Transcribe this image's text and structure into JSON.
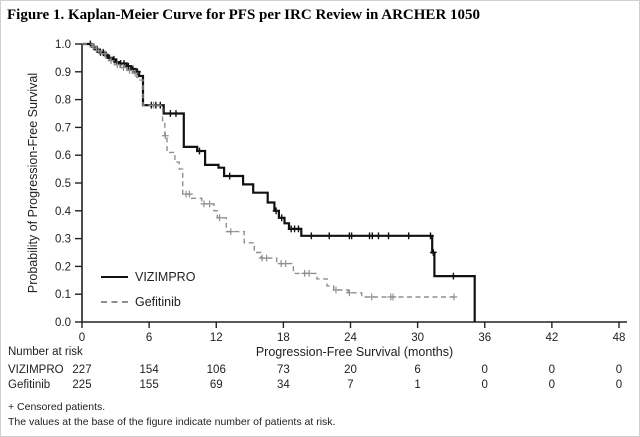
{
  "figure": {
    "title": "Figure 1. Kaplan-Meier Curve for PFS per IRC Review in ARCHER 1050"
  },
  "chart_data": {
    "type": "line",
    "subtype": "kaplan-meier-step-curve",
    "title": "Figure 1. Kaplan-Meier Curve for PFS per IRC Review in ARCHER 1050",
    "xlabel": "Progression-Free Survival (months)",
    "ylabel": "Probability of Progression-Free Survival",
    "xlim": [
      0,
      48
    ],
    "ylim": [
      0.0,
      1.0
    ],
    "x_ticks": [
      0,
      6,
      12,
      18,
      24,
      30,
      36,
      42,
      48
    ],
    "y_ticks": [
      "0.0",
      "0.1",
      "0.2",
      "0.3",
      "0.4",
      "0.5",
      "0.6",
      "0.7",
      "0.8",
      "0.9",
      "1.0"
    ],
    "grid": false,
    "legend_position": "inside-lower-left",
    "censor_marker": "+",
    "series": [
      {
        "name": "VIZIMPRO",
        "color": "#111111",
        "style": "solid",
        "line_width": 2.2,
        "steps": [
          [
            0.9,
            0.99
          ],
          [
            1.3,
            0.98
          ],
          [
            1.6,
            0.97
          ],
          [
            2.0,
            0.96
          ],
          [
            2.3,
            0.95
          ],
          [
            2.7,
            0.945
          ],
          [
            3.0,
            0.935
          ],
          [
            3.3,
            0.93
          ],
          [
            4.0,
            0.92
          ],
          [
            4.4,
            0.91
          ],
          [
            4.8,
            0.9
          ],
          [
            5.1,
            0.885
          ],
          [
            5.45,
            0.78
          ],
          [
            7.3,
            0.75
          ],
          [
            9.1,
            0.63
          ],
          [
            10.3,
            0.615
          ],
          [
            11.0,
            0.565
          ],
          [
            12.2,
            0.555
          ],
          [
            12.7,
            0.525
          ],
          [
            14.4,
            0.495
          ],
          [
            15.3,
            0.465
          ],
          [
            16.6,
            0.43
          ],
          [
            17.2,
            0.4
          ],
          [
            17.6,
            0.375
          ],
          [
            18.1,
            0.355
          ],
          [
            18.5,
            0.335
          ],
          [
            19.6,
            0.31
          ],
          [
            31.3,
            0.25
          ],
          [
            31.5,
            0.165
          ],
          [
            35.1,
            0.0
          ]
        ],
        "end_month": 35.1,
        "censor_months": [
          0.75,
          1.05,
          1.35,
          1.65,
          1.9,
          2.15,
          2.45,
          2.85,
          3.1,
          3.45,
          3.75,
          4.15,
          4.55,
          4.95,
          6.2,
          6.6,
          7.0,
          7.9,
          8.4,
          10.5,
          13.2,
          17.35,
          17.85,
          18.7,
          19.0,
          19.35,
          20.5,
          22.1,
          23.9,
          24.1,
          25.7,
          25.95,
          26.5,
          27.4,
          29.2,
          31.15,
          31.4,
          33.2
        ]
      },
      {
        "name": "Gefitinib",
        "color": "#8f8f8f",
        "style": "dashed",
        "line_width": 1.4,
        "steps": [
          [
            0.9,
            0.99
          ],
          [
            1.3,
            0.975
          ],
          [
            1.7,
            0.965
          ],
          [
            2.1,
            0.95
          ],
          [
            2.5,
            0.94
          ],
          [
            2.9,
            0.925
          ],
          [
            3.4,
            0.915
          ],
          [
            4.0,
            0.905
          ],
          [
            4.5,
            0.895
          ],
          [
            4.9,
            0.88
          ],
          [
            5.2,
            0.87
          ],
          [
            5.45,
            0.78
          ],
          [
            7.2,
            0.72
          ],
          [
            7.4,
            0.67
          ],
          [
            7.6,
            0.61
          ],
          [
            8.3,
            0.575
          ],
          [
            8.7,
            0.55
          ],
          [
            9.0,
            0.46
          ],
          [
            9.8,
            0.445
          ],
          [
            10.7,
            0.425
          ],
          [
            11.8,
            0.4
          ],
          [
            12.1,
            0.375
          ],
          [
            12.9,
            0.325
          ],
          [
            14.5,
            0.285
          ],
          [
            15.4,
            0.25
          ],
          [
            16.0,
            0.23
          ],
          [
            17.4,
            0.21
          ],
          [
            18.9,
            0.175
          ],
          [
            21.0,
            0.155
          ],
          [
            21.9,
            0.13
          ],
          [
            22.5,
            0.115
          ],
          [
            23.8,
            0.105
          ],
          [
            25.0,
            0.09
          ]
        ],
        "end_month": 33.4,
        "censor_months": [
          1.0,
          1.5,
          2.05,
          2.6,
          3.15,
          3.7,
          4.25,
          4.75,
          6.4,
          7.45,
          9.3,
          9.6,
          10.9,
          11.4,
          12.3,
          13.3,
          16.1,
          16.5,
          17.8,
          18.2,
          19.9,
          20.3,
          22.7,
          23.9,
          25.9,
          27.6,
          27.8,
          33.25
        ]
      }
    ],
    "number_at_risk": {
      "label": "Number at risk",
      "months": [
        0,
        6,
        12,
        18,
        24,
        30,
        36,
        42,
        48
      ],
      "rows": [
        {
          "name": "VIZIMPRO",
          "counts": [
            227,
            154,
            106,
            73,
            20,
            6,
            0,
            0,
            0
          ]
        },
        {
          "name": "Gefitinib",
          "counts": [
            225,
            155,
            69,
            34,
            7,
            1,
            0,
            0,
            0
          ]
        }
      ]
    },
    "footnotes": [
      "+ Censored patients.",
      "The values at the base of the figure indicate number of patients at risk."
    ]
  }
}
